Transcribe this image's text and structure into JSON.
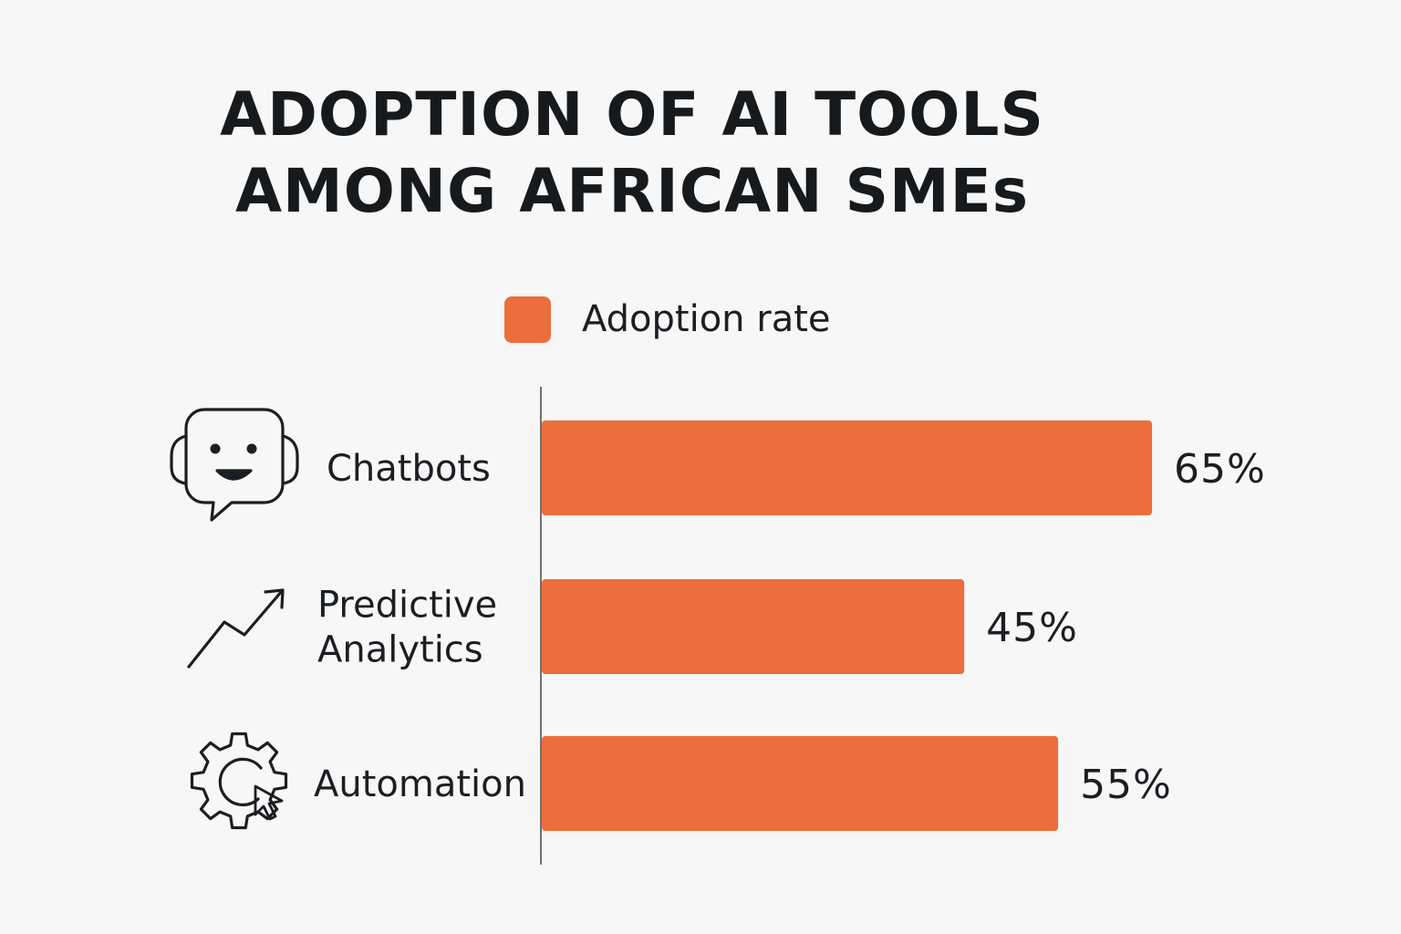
{
  "title_lines": [
    "ADOPTION OF AI TOOLS",
    "AMONG AFRICAN SMEs"
  ],
  "legend": {
    "label": "Adoption rate",
    "color": "#ec6e3c"
  },
  "chart_data": {
    "type": "bar",
    "orientation": "horizontal",
    "title": "ADOPTION OF AI TOOLS AMONG AFRICAN SMEs",
    "categories": [
      "Chatbots",
      "Predictive Analytics",
      "Automation"
    ],
    "category_lines": [
      [
        "Chatbots"
      ],
      [
        "Predictive",
        "Analytics"
      ],
      [
        "Automation"
      ]
    ],
    "category_icons": [
      "chatbot-icon",
      "trend-arrow-icon",
      "automation-gear-icon"
    ],
    "series": [
      {
        "name": "Adoption rate",
        "values": [
          65,
          45,
          55
        ],
        "color": "#ec6e3c"
      }
    ],
    "value_labels": [
      "65%",
      "45%",
      "55%"
    ],
    "unit": "%",
    "grid": false,
    "legend_position": "top"
  }
}
